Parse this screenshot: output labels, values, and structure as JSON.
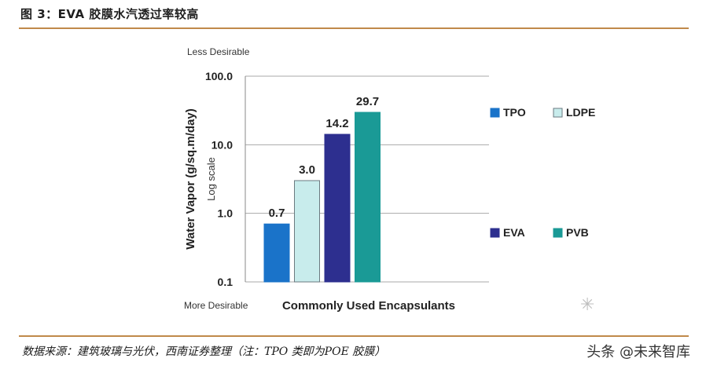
{
  "figure_title": "图 3：EVA 胶膜水汽透过率较高",
  "source_note": "数据来源：建筑玻璃与光伏，西南证券整理（注：TPO 类即为POE 胶膜）",
  "watermark": "头条 @未来智库",
  "chart_data": {
    "type": "bar",
    "title": "",
    "xlabel": "Commonly Used Encapsulants",
    "ylabel": "Water Vapor (g/sq.m/day)",
    "scale_note": "Log scale",
    "top_note": "Less Desirable",
    "bottom_note": "More Desirable",
    "y_scale": "log",
    "ylim": [
      0.1,
      100
    ],
    "yticks": [
      0.1,
      1.0,
      10.0,
      100.0
    ],
    "ytick_labels": [
      "0.1",
      "1.0",
      "10.0",
      "100.0"
    ],
    "grid": true,
    "categories": [
      "TPO",
      "LDPE",
      "EVA",
      "PVB"
    ],
    "values": [
      0.7,
      3.0,
      14.2,
      29.7
    ],
    "value_labels": [
      "0.7",
      "3.0",
      "14.2",
      "29.7"
    ],
    "colors": [
      "#1a73c9",
      "#c8ecec",
      "#2d2f8f",
      "#1a9a96"
    ],
    "bar_outline": [
      "#1a73c9",
      "#6b7a80",
      "#2d2f8f",
      "#1a9a96"
    ],
    "legend": [
      {
        "label": "TPO",
        "color": "#1a73c9"
      },
      {
        "label": "LDPE",
        "color": "#c8ecec"
      },
      {
        "label": "EVA",
        "color": "#2d2f8f"
      },
      {
        "label": "PVB",
        "color": "#1a9a96"
      }
    ],
    "legend_position": "right"
  }
}
